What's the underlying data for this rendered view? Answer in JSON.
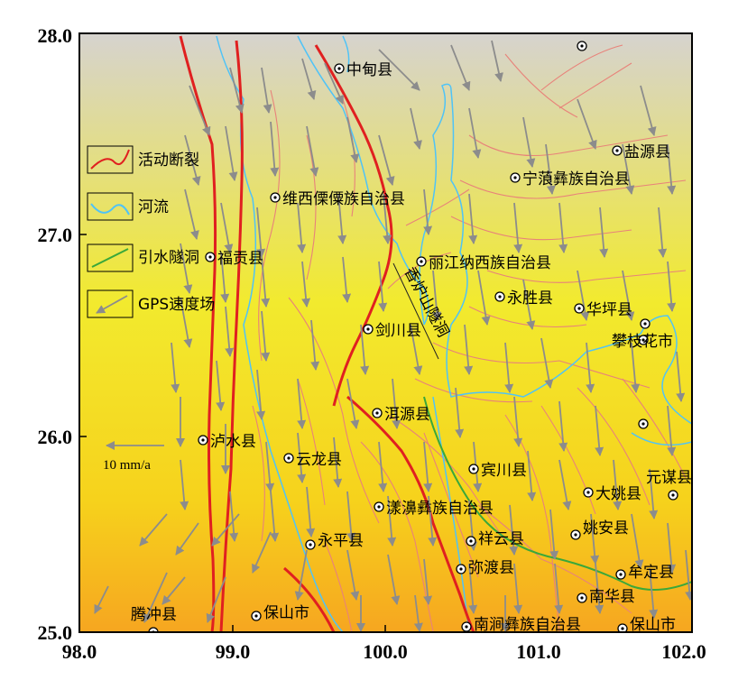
{
  "map": {
    "x_ticks": [
      "98.0",
      "99.0",
      "100.0",
      "101.0",
      "102.0"
    ],
    "y_ticks": [
      "25.0",
      "26.0",
      "27.0",
      "28.0"
    ],
    "legend": [
      {
        "label": "活动断裂",
        "icon": "fault-line-icon",
        "color": "#e02020"
      },
      {
        "label": "河流",
        "icon": "river-line-icon",
        "color": "#4fc3f7"
      },
      {
        "label": "引水隧洞",
        "icon": "tunnel-line-icon",
        "color": "#3aa83a"
      },
      {
        "label": "GPS速度场",
        "icon": "gps-arrow-icon",
        "color": "#8c8c8c"
      }
    ],
    "scale_label": "10 mm/a",
    "tunnel_label": "香炉山隧洞",
    "cities": [
      "中甸县",
      "盐源县",
      "宁蒗彝族自治县",
      "维西傈僳族自治县",
      "福贡县",
      "丽江纳西族自治县",
      "永胜县",
      "华坪县",
      "剑川县",
      "攀枝花市",
      "洱源县",
      "泸水县",
      "云龙县",
      "宾川县",
      "元谋县",
      "漾濞彝族自治县",
      "大姚县",
      "姚安县",
      "永平县",
      "祥云县",
      "弥渡县",
      "牟定县",
      "腾冲县",
      "保山市",
      "南华县",
      "南涧彝族自治县",
      "保山市"
    ],
    "colors": {
      "gradient_top": "#d6d3cf",
      "gradient_mid": "#f6ee1e",
      "gradient_bottom": "#f6a620",
      "fault": "#e02020",
      "minor_fault": "#e8827a",
      "river": "#4fc3f7",
      "tunnel": "#3aa83a",
      "gps": "#8c8c8c"
    }
  }
}
